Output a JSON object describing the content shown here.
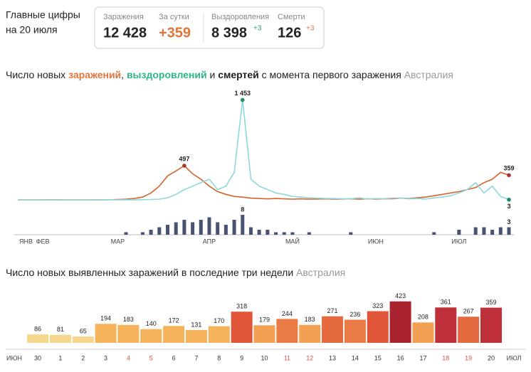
{
  "header": {
    "title": "Главные цифры",
    "subtitle": "на 20 июля",
    "stats": [
      {
        "label": "Заражения",
        "value": "12 428"
      },
      {
        "label": "За сутки",
        "value": "+359"
      },
      {
        "label": "Выздоровления",
        "value": "8 398",
        "delta": "+3"
      },
      {
        "label": "Смерти",
        "value": "126",
        "delta": "+3"
      }
    ]
  },
  "chart_data": [
    {
      "type": "line",
      "title_parts": [
        "Число новых ",
        "заражений",
        ", ",
        "выздоровлений",
        " и ",
        "смертей",
        " с момента первого заражения ",
        "Австралия"
      ],
      "categories": [
        "ЯНВ",
        null,
        null,
        "ФЕВ",
        null,
        null,
        null,
        null,
        null,
        null,
        null,
        null,
        "МАР",
        null,
        null,
        null,
        null,
        null,
        null,
        null,
        null,
        null,
        null,
        "АПР",
        null,
        null,
        null,
        null,
        null,
        null,
        null,
        null,
        null,
        "МАЙ",
        null,
        null,
        null,
        null,
        null,
        null,
        null,
        null,
        null,
        "ИЮН",
        null,
        null,
        null,
        null,
        null,
        null,
        null,
        null,
        null,
        "ИЮЛ",
        null,
        null,
        null,
        null,
        null,
        null
      ],
      "ylim": [
        0,
        1500
      ],
      "y2lim": [
        0,
        8
      ],
      "series": [
        {
          "color": "#d2642a",
          "dot_color": "#a8322e",
          "values": [
            0,
            0,
            0,
            1,
            2,
            1,
            0,
            0,
            0,
            0,
            1,
            2,
            5,
            10,
            20,
            40,
            100,
            200,
            350,
            420,
            497,
            380,
            300,
            200,
            120,
            80,
            50,
            40,
            25,
            20,
            15,
            20,
            15,
            10,
            15,
            10,
            12,
            15,
            10,
            12,
            15,
            10,
            15,
            12,
            15,
            20,
            25,
            20,
            30,
            40,
            60,
            80,
            100,
            120,
            150,
            180,
            250,
            300,
            400,
            359
          ],
          "value_labels": [
            null,
            null,
            null,
            null,
            null,
            null,
            null,
            null,
            null,
            null,
            null,
            null,
            null,
            null,
            null,
            null,
            null,
            null,
            null,
            null,
            "497",
            null,
            null,
            null,
            null,
            null,
            null,
            null,
            null,
            null,
            null,
            null,
            null,
            null,
            null,
            null,
            null,
            null,
            null,
            null,
            null,
            null,
            null,
            null,
            null,
            null,
            null,
            null,
            null,
            null,
            null,
            null,
            null,
            null,
            null,
            null,
            null,
            null,
            null,
            "359"
          ]
        },
        {
          "color": "#8ed8dc",
          "dot_color": "#1a8f6a",
          "values": [
            0,
            0,
            0,
            0,
            0,
            0,
            0,
            0,
            0,
            0,
            1,
            2,
            0,
            1,
            0,
            2,
            5,
            10,
            30,
            80,
            150,
            200,
            250,
            300,
            150,
            200,
            400,
            1453,
            300,
            200,
            150,
            100,
            80,
            50,
            40,
            30,
            25,
            20,
            20,
            15,
            15,
            30,
            10,
            20,
            15,
            10,
            25,
            15,
            20,
            10,
            30,
            40,
            60,
            100,
            150,
            250,
            100,
            200,
            50,
            3
          ],
          "value_labels": [
            null,
            null,
            null,
            null,
            null,
            null,
            null,
            null,
            null,
            null,
            null,
            null,
            null,
            null,
            null,
            null,
            null,
            null,
            null,
            null,
            null,
            null,
            null,
            null,
            null,
            null,
            null,
            "1 453",
            null,
            null,
            null,
            null,
            null,
            null,
            null,
            null,
            null,
            null,
            null,
            null,
            null,
            null,
            null,
            null,
            null,
            null,
            null,
            null,
            null,
            null,
            null,
            null,
            null,
            null,
            null,
            null,
            null,
            null,
            null,
            "3"
          ]
        },
        {
          "type": "bar",
          "axis": "y2",
          "color": "#4a5272",
          "values": [
            0,
            0,
            0,
            0,
            0,
            0,
            0,
            0,
            0,
            0,
            0,
            0,
            0,
            1,
            0,
            1,
            2,
            3,
            4,
            5,
            6,
            5,
            6,
            7,
            5,
            4,
            6,
            8,
            3,
            2,
            2,
            1,
            1,
            1,
            0,
            1,
            0,
            0,
            0,
            0,
            1,
            0,
            0,
            0,
            0,
            0,
            0,
            0,
            0,
            0,
            1,
            0,
            0,
            2,
            0,
            3,
            3,
            2,
            3,
            3
          ],
          "value_labels": [
            null,
            null,
            null,
            null,
            null,
            null,
            null,
            null,
            null,
            null,
            null,
            null,
            null,
            null,
            null,
            null,
            null,
            null,
            null,
            null,
            null,
            null,
            null,
            null,
            null,
            null,
            null,
            "8",
            null,
            null,
            null,
            null,
            null,
            null,
            null,
            null,
            null,
            null,
            null,
            null,
            null,
            null,
            null,
            null,
            null,
            null,
            null,
            null,
            null,
            null,
            null,
            null,
            null,
            null,
            null,
            null,
            null,
            null,
            null,
            "3"
          ]
        }
      ]
    },
    {
      "type": "bar",
      "title_parts": [
        "Число новых выявленных заражений в последние три недели ",
        "Австралия"
      ],
      "axis_labels": [
        "ИЮН",
        "ИЮЛ"
      ],
      "categories": [
        "30",
        "1",
        "2",
        "3",
        "4",
        "5",
        "6",
        "7",
        "8",
        "9",
        "10",
        "11",
        "12",
        "13",
        "14",
        "15",
        "16",
        "17",
        "18",
        "19",
        "20"
      ],
      "values": [
        86,
        81,
        65,
        194,
        183,
        140,
        172,
        131,
        170,
        318,
        179,
        244,
        183,
        271,
        236,
        323,
        423,
        208,
        361,
        267,
        359
      ],
      "colors": [
        "#f6d68c",
        "#f6d68c",
        "#f6d68c",
        "#f5b35c",
        "#f5b35c",
        "#f5b35c",
        "#f5b35c",
        "#f5b35c",
        "#f5b35c",
        "#e0553a",
        "#f2a052",
        "#eb7b45",
        "#f2a052",
        "#e56a40",
        "#eb7b45",
        "#e0553a",
        "#a8232e",
        "#f2a052",
        "#c0303a",
        "#e56a40",
        "#c0303a"
      ],
      "category_colors": [
        "#333",
        "#333",
        "#333",
        "#333",
        "#d9534f",
        "#d9534f",
        "#333",
        "#333",
        "#333",
        "#333",
        "#333",
        "#d9534f",
        "#d9534f",
        "#333",
        "#333",
        "#333",
        "#333",
        "#333",
        "#d9534f",
        "#d9534f",
        "#333"
      ],
      "ylim": [
        0,
        450
      ]
    }
  ]
}
